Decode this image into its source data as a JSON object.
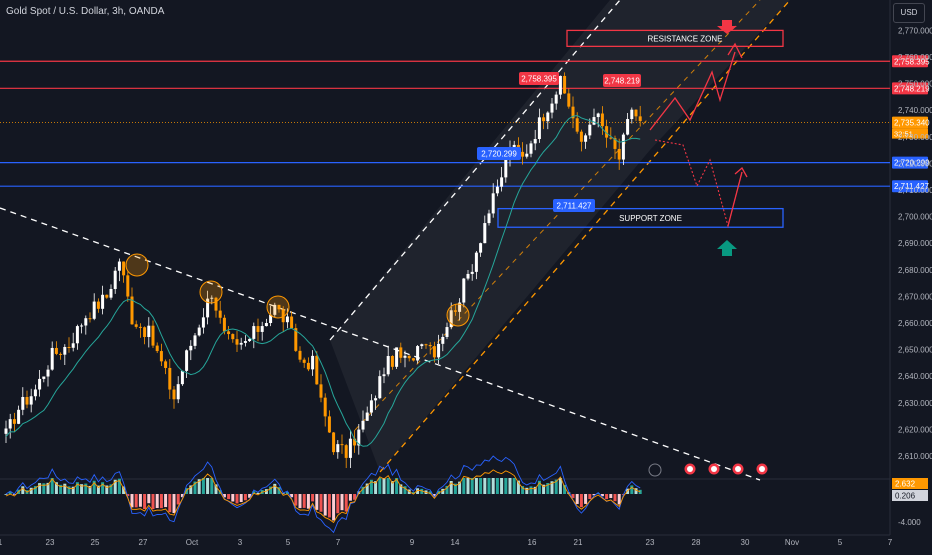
{
  "header": {
    "title": "Gold Spot / U.S. Dollar, 3h, OANDA",
    "currency": "USD"
  },
  "chart_data": {
    "type": "candlestick",
    "title": "Gold Spot / U.S. Dollar, 3h, OANDA",
    "ylim": [
      2600,
      2775
    ],
    "y_ticks": [
      2610,
      2620,
      2630,
      2640,
      2650,
      2660,
      2670,
      2680,
      2690,
      2700,
      2710,
      2720,
      2730,
      2740,
      2750,
      2760,
      2770
    ],
    "y_tick_labels": [
      "2,610.000",
      "2,620.000",
      "2,630.000",
      "2,640.000",
      "2,650.000",
      "2,660.000",
      "2,670.000",
      "2,680.000",
      "2,690.000",
      "2,700.000",
      "2,710.000",
      "2,720.000",
      "2,730.000",
      "2,740.000",
      "2,750.000",
      "2,760.000",
      "2,770.000"
    ],
    "x_ticks": [
      "23",
      "25",
      "27",
      "Oct",
      "3",
      "5",
      "7",
      "9",
      "14",
      "16",
      "21",
      "23",
      "28",
      "30",
      "Nov",
      "5",
      "7",
      "1"
    ],
    "series_anchors": [
      {
        "bar": 0,
        "value": 2618
      },
      {
        "bar": 3,
        "value": 2628
      },
      {
        "bar": 7,
        "value": 2635
      },
      {
        "bar": 11,
        "value": 2648
      },
      {
        "bar": 15,
        "value": 2652
      },
      {
        "bar": 19,
        "value": 2663
      },
      {
        "bar": 24,
        "value": 2670
      },
      {
        "bar": 27,
        "value": 2684
      },
      {
        "bar": 30,
        "value": 2662
      },
      {
        "bar": 34,
        "value": 2656
      },
      {
        "bar": 37,
        "value": 2645
      },
      {
        "bar": 40,
        "value": 2632
      },
      {
        "bar": 43,
        "value": 2648
      },
      {
        "bar": 46,
        "value": 2660
      },
      {
        "bar": 49,
        "value": 2672
      },
      {
        "bar": 52,
        "value": 2655
      },
      {
        "bar": 55,
        "value": 2650
      },
      {
        "bar": 58,
        "value": 2654
      },
      {
        "bar": 61,
        "value": 2660
      },
      {
        "bar": 64,
        "value": 2666
      },
      {
        "bar": 67,
        "value": 2660
      },
      {
        "bar": 70,
        "value": 2646
      },
      {
        "bar": 73,
        "value": 2645
      },
      {
        "bar": 75,
        "value": 2630
      },
      {
        "bar": 78,
        "value": 2614
      },
      {
        "bar": 81,
        "value": 2611
      },
      {
        "bar": 84,
        "value": 2619
      },
      {
        "bar": 87,
        "value": 2629
      },
      {
        "bar": 90,
        "value": 2643
      },
      {
        "bar": 93,
        "value": 2648
      },
      {
        "bar": 96,
        "value": 2645
      },
      {
        "bar": 99,
        "value": 2655
      },
      {
        "bar": 102,
        "value": 2650
      },
      {
        "bar": 105,
        "value": 2660
      },
      {
        "bar": 108,
        "value": 2670
      },
      {
        "bar": 111,
        "value": 2682
      },
      {
        "bar": 114,
        "value": 2698
      },
      {
        "bar": 117,
        "value": 2710
      },
      {
        "bar": 120,
        "value": 2726
      },
      {
        "bar": 123,
        "value": 2722
      },
      {
        "bar": 126,
        "value": 2732
      },
      {
        "bar": 129,
        "value": 2742
      },
      {
        "bar": 132,
        "value": 2750
      },
      {
        "bar": 135,
        "value": 2738
      },
      {
        "bar": 137,
        "value": 2726
      },
      {
        "bar": 140,
        "value": 2740
      },
      {
        "bar": 143,
        "value": 2730
      },
      {
        "bar": 146,
        "value": 2722
      },
      {
        "bar": 149,
        "value": 2741
      },
      {
        "bar": 151,
        "value": 2735
      }
    ],
    "levels": [
      {
        "name": "resistance-high",
        "value": 2758.395,
        "label": "2,758.395",
        "color": "#f23645"
      },
      {
        "name": "resistance-low",
        "value": 2748.219,
        "label": "2,748.219",
        "color": "#f23645"
      },
      {
        "name": "current-price",
        "value": 2735.34,
        "label": "2,735.340",
        "color": "#ff9800"
      },
      {
        "name": "support-high",
        "value": 2720.299,
        "label": "2,720.299",
        "color": "#2962ff"
      },
      {
        "name": "support-low",
        "value": 2711.427,
        "label": "2,711.427",
        "color": "#2962ff"
      }
    ],
    "countdown": "32:51",
    "zones": [
      {
        "name": "resistance-zone",
        "label": "RESISTANCE ZONE",
        "from": 2764,
        "to": 2770,
        "color": "#f23645"
      },
      {
        "name": "support-zone",
        "label": "SUPPORT ZONE",
        "from": 2696,
        "to": 2703,
        "color": "#2962ff"
      }
    ],
    "callouts": [
      {
        "label": "2,758.395",
        "color": "#f23645"
      },
      {
        "label": "2,748.219",
        "color": "#f23645"
      },
      {
        "label": "2,720.299",
        "color": "#2962ff"
      },
      {
        "label": "2,711.427",
        "color": "#2962ff"
      }
    ],
    "indicator": {
      "values_shown": [
        "2.632",
        "0.206"
      ],
      "ticks_shown": [
        "-4.000"
      ]
    },
    "colors": {
      "up": "#ffffff",
      "down": "#ff9800",
      "ma": "#26a69a",
      "channel": "#ff9800",
      "background": "#131722"
    }
  }
}
